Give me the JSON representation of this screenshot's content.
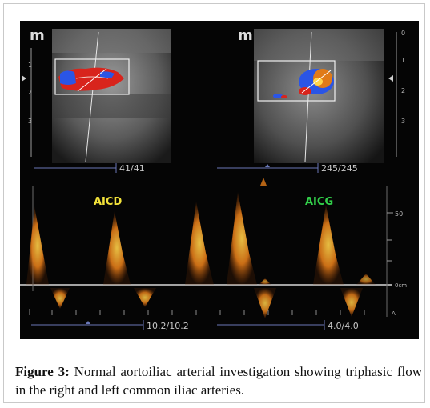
{
  "figure": {
    "caption_label": "Figure 3:",
    "caption_text": "Normal aortoiliac arterial investigation showing triphasic flow in the right and left common iliac arteries.",
    "logo": "m",
    "panels": {
      "left": {
        "vessel_label": "AICD",
        "vessel_label_color": "#f2e23a",
        "scale_top": "41/41",
        "scale_bottom": "10.2/10.2",
        "depth_ticks": [
          "1",
          "2",
          "3"
        ]
      },
      "right": {
        "vessel_label": "AICG",
        "vessel_label_color": "#32d04a",
        "scale_top": "245/245",
        "scale_bottom": "4.0/4.0",
        "depth_ticks": [
          "0",
          "1",
          "2",
          "3"
        ],
        "velocity_tick": "50",
        "baseline_label": "0cm",
        "axis_unit": "A"
      }
    },
    "colors": {
      "background": "#050505",
      "doppler_orange": "#e07a18",
      "flow_red": "#d8241c",
      "flow_blue": "#2a55e6"
    }
  }
}
